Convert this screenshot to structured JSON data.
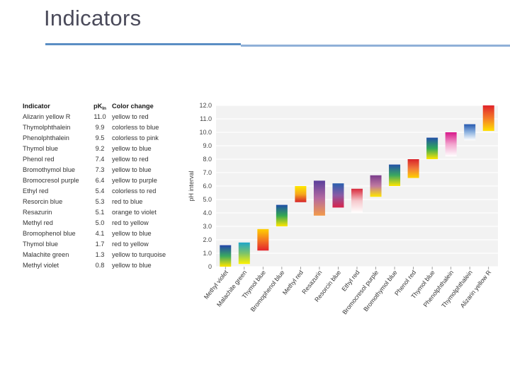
{
  "slide": {
    "title": "Indicators"
  },
  "table": {
    "headers": {
      "indicator": "Indicator",
      "pk_main": "pK",
      "pk_sub": "In",
      "color_change": "Color change"
    },
    "rows": [
      {
        "indicator": "Alizarin yellow R",
        "pk": "11.0",
        "color_change": "yellow to red"
      },
      {
        "indicator": "Thymolphthalein",
        "pk": "9.9",
        "color_change": "colorless to blue"
      },
      {
        "indicator": "Phenolphthalein",
        "pk": "9.5",
        "color_change": "colorless to pink"
      },
      {
        "indicator": "Thymol blue",
        "pk": "9.2",
        "color_change": "yellow to blue"
      },
      {
        "indicator": "Phenol red",
        "pk": "7.4",
        "color_change": "yellow to red"
      },
      {
        "indicator": "Bromothymol blue",
        "pk": "7.3",
        "color_change": "yellow to blue"
      },
      {
        "indicator": "Bromocresol purple",
        "pk": "6.4",
        "color_change": "yellow to purple"
      },
      {
        "indicator": "Ethyl red",
        "pk": "5.4",
        "color_change": "colorless to red"
      },
      {
        "indicator": "Resorcin blue",
        "pk": "5.3",
        "color_change": "red to blue"
      },
      {
        "indicator": "Resazurin",
        "pk": "5.1",
        "color_change": "orange to violet"
      },
      {
        "indicator": "Methyl red",
        "pk": "5.0",
        "color_change": "red to yellow"
      },
      {
        "indicator": "Bromophenol blue",
        "pk": "4.1",
        "color_change": "yellow to blue"
      },
      {
        "indicator": "Thymol blue",
        "pk": "1.7",
        "color_change": "red to yellow"
      },
      {
        "indicator": "Malachite green",
        "pk": "1.3",
        "color_change": "yellow to turquoise"
      },
      {
        "indicator": "Methyl violet",
        "pk": "0.8",
        "color_change": "yellow to blue"
      }
    ]
  },
  "chart_data": {
    "type": "bar",
    "ylabel": "pH interval",
    "ylim": [
      0,
      12
    ],
    "yticks": [
      "0",
      "1.0",
      "2.0",
      "3.0",
      "4.0",
      "5.0",
      "6.0",
      "7.0",
      "8.0",
      "9.0",
      "10.0",
      "11.0",
      "12.0"
    ],
    "grid": true,
    "categories": [
      "Methyl violet",
      "Malachite green",
      "Thymol blue",
      "Bromophenol blue",
      "Methyl red",
      "Resazurin",
      "Resorcin blue",
      "Ethyl red",
      "Bromocresol purple",
      "Bromothymol blue",
      "Phenol red",
      "Thymol blue",
      "Phenolphthalein",
      "Thymolphthalein",
      "Alizarin yellow R"
    ],
    "intervals": [
      {
        "low": 0.0,
        "high": 1.6,
        "colors": [
          "#ffe600",
          "#3aa860",
          "#2244aa"
        ]
      },
      {
        "low": 0.2,
        "high": 1.8,
        "colors": [
          "#fff200",
          "#7cc36a",
          "#1fa6c8"
        ]
      },
      {
        "low": 1.2,
        "high": 2.8,
        "colors": [
          "#e4242c",
          "#f47a20",
          "#ffd000"
        ]
      },
      {
        "low": 3.0,
        "high": 4.6,
        "colors": [
          "#ffe600",
          "#33a852",
          "#1f4ea8"
        ]
      },
      {
        "low": 4.8,
        "high": 6.0,
        "colors": [
          "#d6232a",
          "#f6a81c",
          "#ffe800"
        ]
      },
      {
        "low": 3.8,
        "high": 6.4,
        "colors": [
          "#f39a4a",
          "#b46aa0",
          "#5a3f9c"
        ]
      },
      {
        "low": 4.4,
        "high": 6.2,
        "colors": [
          "#d8234a",
          "#8a5aa5",
          "#2a5faf"
        ]
      },
      {
        "low": 4.0,
        "high": 5.8,
        "colors": [
          "#ffffff",
          "#f6c8cc",
          "#d82a3c"
        ]
      },
      {
        "low": 5.2,
        "high": 6.8,
        "colors": [
          "#ffe600",
          "#c07aa0",
          "#7a3c8c"
        ]
      },
      {
        "low": 6.0,
        "high": 7.6,
        "colors": [
          "#ffe600",
          "#3aa860",
          "#2350a8"
        ]
      },
      {
        "low": 6.6,
        "high": 8.0,
        "colors": [
          "#ffd200",
          "#f27a3a",
          "#d8232a"
        ]
      },
      {
        "low": 8.0,
        "high": 9.6,
        "colors": [
          "#ffe600",
          "#2fa85a",
          "#2350a8"
        ]
      },
      {
        "low": 8.2,
        "high": 10.0,
        "colors": [
          "#ffffff",
          "#f3a6cf",
          "#d7188a"
        ]
      },
      {
        "low": 9.4,
        "high": 10.6,
        "colors": [
          "#ffffff",
          "#8fb4e0",
          "#2559b0"
        ]
      },
      {
        "low": 10.1,
        "high": 12.0,
        "colors": [
          "#ffe000",
          "#f47a28",
          "#e0232a"
        ]
      }
    ]
  }
}
